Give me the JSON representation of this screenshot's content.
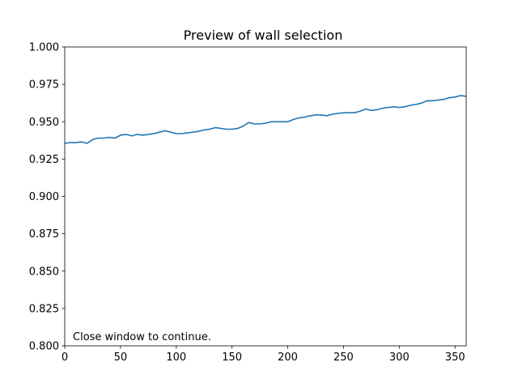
{
  "chart_data": {
    "type": "line",
    "title": "Preview of wall selection",
    "xlabel": "",
    "ylabel": "",
    "xlim": [
      0,
      360
    ],
    "ylim": [
      0.8,
      1.0
    ],
    "xticks": [
      "0",
      "50",
      "100",
      "150",
      "200",
      "250",
      "300",
      "350"
    ],
    "xtick_values": [
      0,
      50,
      100,
      150,
      200,
      250,
      300,
      350
    ],
    "yticks": [
      "0.800",
      "0.825",
      "0.850",
      "0.875",
      "0.900",
      "0.925",
      "0.950",
      "0.975",
      "1.000"
    ],
    "ytick_values": [
      0.8,
      0.825,
      0.85,
      0.875,
      0.9,
      0.925,
      0.95,
      0.975,
      1.0
    ],
    "grid": false,
    "line_color": "#1f77b4",
    "annotation": "Close window to continue.",
    "series": [
      {
        "x": [
          0,
          5,
          10,
          15,
          20,
          25,
          30,
          35,
          40,
          45,
          50,
          55,
          60,
          65,
          70,
          75,
          80,
          85,
          90,
          95,
          100,
          105,
          110,
          115,
          120,
          125,
          130,
          135,
          140,
          145,
          150,
          155,
          160,
          165,
          170,
          175,
          180,
          185,
          190,
          195,
          200,
          205,
          210,
          215,
          220,
          225,
          230,
          235,
          240,
          245,
          250,
          255,
          260,
          265,
          270,
          275,
          280,
          285,
          290,
          295,
          300,
          305,
          310,
          315,
          320,
          325,
          330,
          335,
          340,
          345,
          350,
          355,
          360
        ],
        "y": [
          0.9355,
          0.936,
          0.936,
          0.9365,
          0.9355,
          0.938,
          0.939,
          0.939,
          0.9395,
          0.939,
          0.941,
          0.9415,
          0.9405,
          0.9415,
          0.941,
          0.9415,
          0.942,
          0.943,
          0.944,
          0.943,
          0.942,
          0.942,
          0.9425,
          0.943,
          0.9435,
          0.9445,
          0.945,
          0.946,
          0.9455,
          0.945,
          0.945,
          0.9455,
          0.947,
          0.9495,
          0.9485,
          0.9485,
          0.949,
          0.95,
          0.95,
          0.95,
          0.95,
          0.9515,
          0.9525,
          0.953,
          0.954,
          0.9545,
          0.9545,
          0.954,
          0.955,
          0.9555,
          0.956,
          0.956,
          0.956,
          0.957,
          0.9585,
          0.9575,
          0.958,
          0.959,
          0.9595,
          0.96,
          0.9595,
          0.96,
          0.961,
          0.9615,
          0.9625,
          0.964,
          0.964,
          0.9645,
          0.965,
          0.966,
          0.9665,
          0.9675,
          0.967
        ]
      }
    ]
  }
}
